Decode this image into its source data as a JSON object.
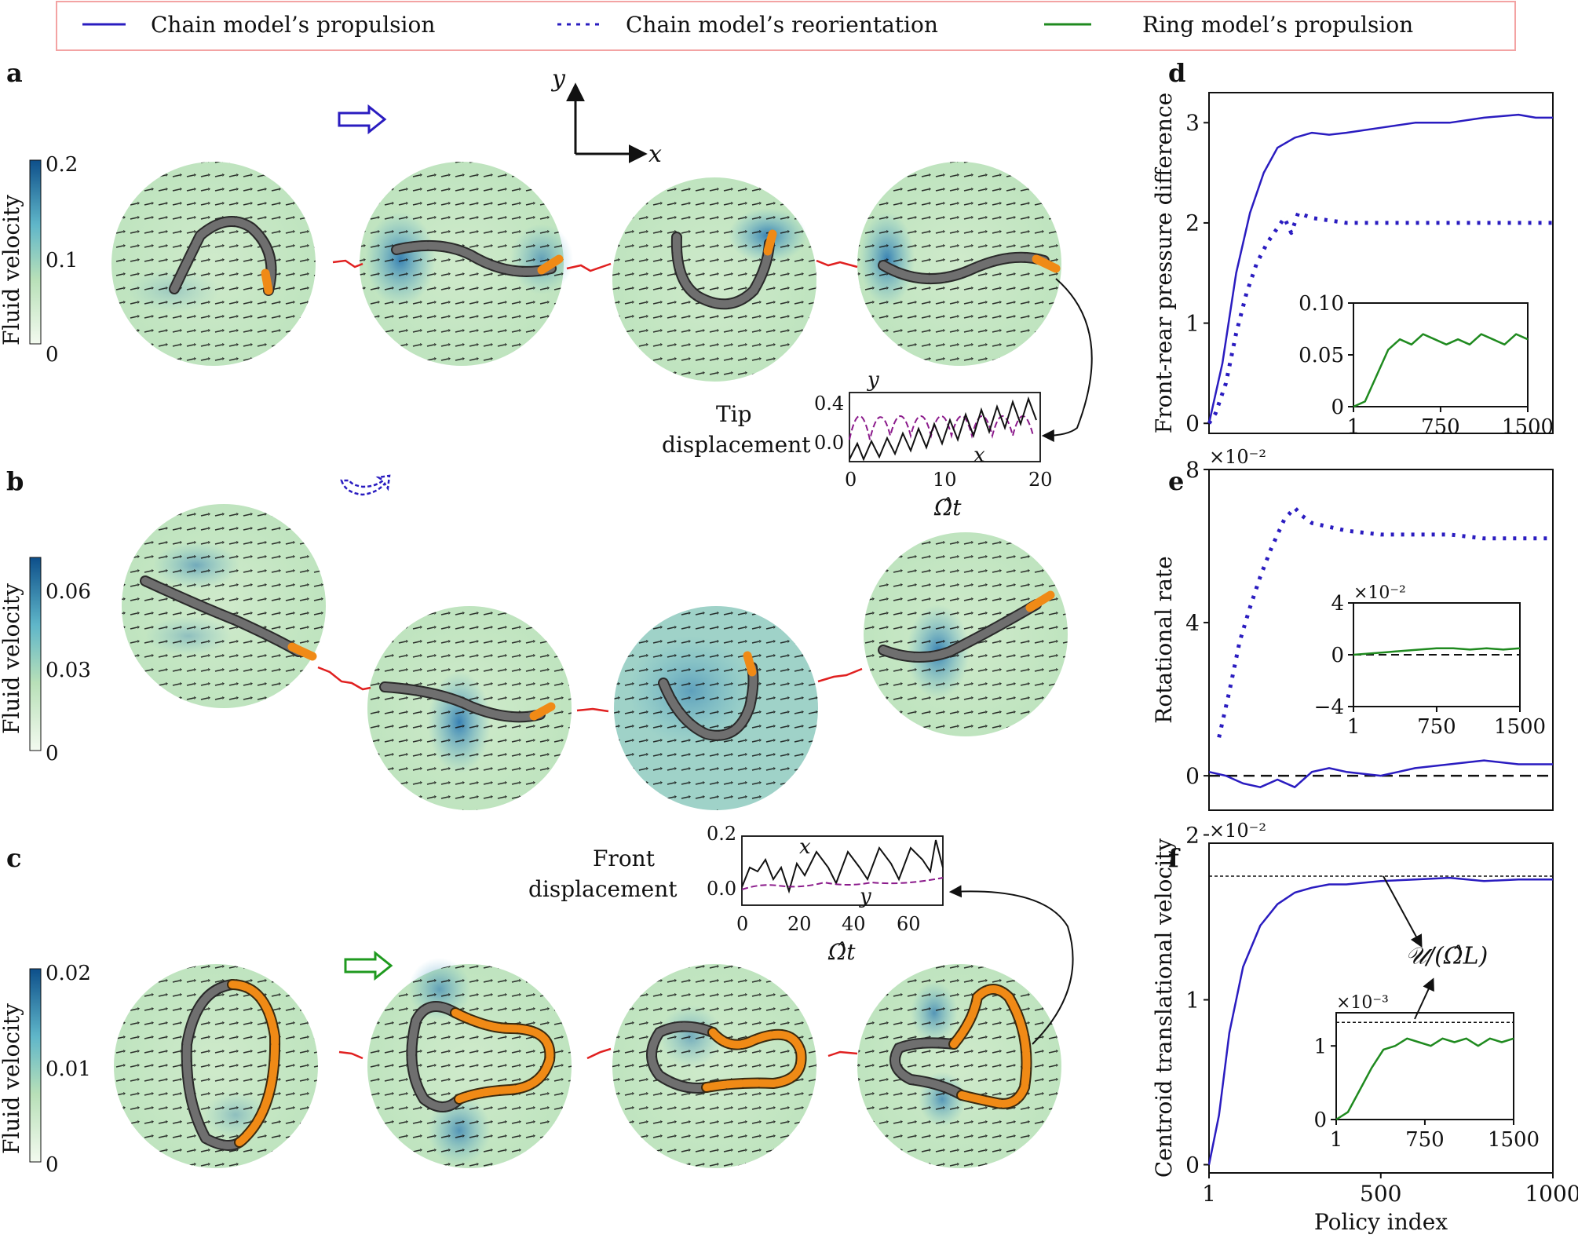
{
  "legend": {
    "items": [
      {
        "label": "Chain model’s propulsion",
        "color": "#2a1cc0",
        "style": "solid"
      },
      {
        "label": "Chain model’s reorientation",
        "color": "#2a1cc0",
        "style": "dotted"
      },
      {
        "label": "Ring model’s propulsion",
        "color": "#1f8a1f",
        "style": "solid"
      }
    ],
    "border_color": "#f3a3a3"
  },
  "panels": {
    "a": {
      "letter": "a",
      "colorbar": {
        "label": "Fluid velocity",
        "ticks": [
          "0.2",
          "0.1",
          "0"
        ]
      },
      "axes_labels": {
        "y": "y",
        "x": "x"
      },
      "inset": {
        "label_line1": "Tip",
        "label_line2": "displacement",
        "xticks": [
          "0",
          "10",
          "20"
        ],
        "yticks": [
          "0.4",
          "0.0"
        ],
        "xlabel": "Ω̂t",
        "curve_x_label": "x",
        "curve_y_label": "y"
      }
    },
    "b": {
      "letter": "b",
      "colorbar": {
        "label": "Fluid velocity",
        "ticks": [
          "0.06",
          "0.03",
          "0"
        ]
      }
    },
    "c": {
      "letter": "c",
      "colorbar": {
        "label": "Fluid velocity",
        "ticks": [
          "0.02",
          "0.01",
          "0"
        ]
      },
      "inset": {
        "label_line1": "Front",
        "label_line2": "displacement",
        "xticks": [
          "0",
          "20",
          "40",
          "60"
        ],
        "yticks": [
          "0.2",
          "0.0"
        ],
        "xlabel": "Ω̂t",
        "curve_x_label": "x",
        "curve_y_label": "y"
      }
    }
  },
  "chart_data": [
    {
      "id": "d",
      "type": "line",
      "letter": "d",
      "ylabel": "Front-rear pressure difference",
      "xlim": [
        1,
        1000
      ],
      "ylim": [
        -0.1,
        3.3
      ],
      "yticks": [
        "0",
        "1",
        "2",
        "3"
      ],
      "series": [
        {
          "name": "Chain model’s propulsion",
          "style": "solid",
          "x": [
            1,
            40,
            80,
            120,
            160,
            200,
            250,
            300,
            350,
            400,
            500,
            600,
            700,
            800,
            900,
            950,
            1000
          ],
          "values": [
            0.0,
            0.6,
            1.5,
            2.1,
            2.5,
            2.75,
            2.85,
            2.9,
            2.88,
            2.9,
            2.95,
            3.0,
            3.0,
            3.05,
            3.08,
            3.05,
            3.05
          ]
        },
        {
          "name": "Chain model’s reorientation",
          "style": "dotted",
          "x": [
            1,
            20,
            50,
            80,
            110,
            140,
            170,
            200,
            220,
            240,
            260,
            300,
            400,
            500,
            600,
            700,
            800,
            900,
            1000
          ],
          "values": [
            0.0,
            0.1,
            0.4,
            0.9,
            1.3,
            1.6,
            1.8,
            1.95,
            2.05,
            1.9,
            2.1,
            2.05,
            2.0,
            2.0,
            2.0,
            2.0,
            2.0,
            2.0,
            2.0
          ]
        }
      ],
      "inset": {
        "xticks": [
          "1",
          "750",
          "1500"
        ],
        "yticks": [
          "0.10",
          "0.05",
          "0"
        ],
        "xlim": [
          1,
          1500
        ],
        "ylim": [
          0,
          0.1
        ],
        "series": [
          {
            "name": "Ring model’s propulsion",
            "x": [
              1,
              100,
              200,
              300,
              400,
              500,
              600,
              700,
              800,
              900,
              1000,
              1100,
              1200,
              1300,
              1400,
              1500
            ],
            "values": [
              0.0,
              0.005,
              0.03,
              0.055,
              0.065,
              0.06,
              0.07,
              0.065,
              0.06,
              0.065,
              0.06,
              0.07,
              0.065,
              0.06,
              0.07,
              0.065
            ]
          }
        ]
      }
    },
    {
      "id": "e",
      "type": "line",
      "letter": "e",
      "ylabel": "Rotational rate",
      "exponent": "×10⁻²",
      "xlim": [
        1,
        1000
      ],
      "ylim": [
        -0.9,
        8.0
      ],
      "yticks": [
        "0",
        "4",
        "8"
      ],
      "series": [
        {
          "name": "Chain model’s reorientation",
          "style": "dotted",
          "x": [
            30,
            60,
            90,
            120,
            150,
            180,
            200,
            220,
            250,
            270,
            300,
            350,
            400,
            500,
            600,
            700,
            800,
            900,
            1000
          ],
          "values": [
            1.0,
            2.2,
            3.5,
            4.4,
            5.2,
            5.9,
            6.3,
            6.7,
            7.0,
            6.8,
            6.6,
            6.5,
            6.4,
            6.3,
            6.3,
            6.3,
            6.2,
            6.2,
            6.2
          ]
        },
        {
          "name": "Chain model’s propulsion",
          "style": "solid",
          "x": [
            1,
            50,
            100,
            150,
            200,
            250,
            300,
            350,
            400,
            500,
            600,
            700,
            800,
            900,
            1000
          ],
          "values": [
            0.1,
            0.0,
            -0.2,
            -0.3,
            -0.1,
            -0.3,
            0.1,
            0.2,
            0.1,
            0.0,
            0.2,
            0.3,
            0.4,
            0.3,
            0.3
          ]
        }
      ],
      "inset": {
        "exponent": "×10⁻²",
        "xticks": [
          "1",
          "750",
          "1500"
        ],
        "yticks": [
          "4",
          "0",
          "−4"
        ],
        "xlim": [
          1,
          1500
        ],
        "ylim": [
          -4,
          4
        ],
        "series": [
          {
            "name": "Ring model’s propulsion",
            "x": [
              1,
              150,
              300,
              450,
              600,
              750,
              900,
              1050,
              1200,
              1350,
              1500
            ],
            "values": [
              0.0,
              0.1,
              0.2,
              0.3,
              0.4,
              0.5,
              0.5,
              0.4,
              0.5,
              0.4,
              0.5
            ]
          }
        ]
      }
    },
    {
      "id": "f",
      "type": "line",
      "letter": "f",
      "ylabel": "Centroid translational velocity",
      "exponent": "×10⁻²",
      "xlabel": "Policy index",
      "xlim": [
        1,
        1000
      ],
      "ylim": [
        -0.05,
        1.95
      ],
      "yticks": [
        "0",
        "1",
        "2"
      ],
      "xticks": [
        "1",
        "500",
        "1000"
      ],
      "reference_value": 1.75,
      "reference_label": "𝒰/(Ω̂L)",
      "series": [
        {
          "name": "Chain model’s propulsion",
          "style": "solid",
          "x": [
            1,
            30,
            60,
            100,
            150,
            200,
            250,
            300,
            350,
            400,
            500,
            600,
            700,
            800,
            900,
            1000
          ],
          "values": [
            0.0,
            0.3,
            0.8,
            1.2,
            1.45,
            1.58,
            1.65,
            1.68,
            1.7,
            1.7,
            1.72,
            1.73,
            1.74,
            1.72,
            1.73,
            1.73
          ]
        }
      ],
      "inset": {
        "exponent": "×10⁻³",
        "xticks": [
          "1",
          "750",
          "1500"
        ],
        "yticks": [
          "1",
          "0"
        ],
        "xlim": [
          1,
          1500
        ],
        "ylim": [
          0,
          1.45
        ],
        "reference_value": 1.32,
        "series": [
          {
            "name": "Ring model’s propulsion",
            "x": [
              1,
              100,
              200,
              300,
              400,
              500,
              600,
              700,
              800,
              900,
              1000,
              1100,
              1200,
              1300,
              1400,
              1500
            ],
            "values": [
              0.0,
              0.1,
              0.4,
              0.7,
              0.95,
              1.0,
              1.1,
              1.05,
              1.0,
              1.1,
              1.05,
              1.1,
              1.0,
              1.1,
              1.05,
              1.1
            ]
          }
        ]
      }
    }
  ]
}
